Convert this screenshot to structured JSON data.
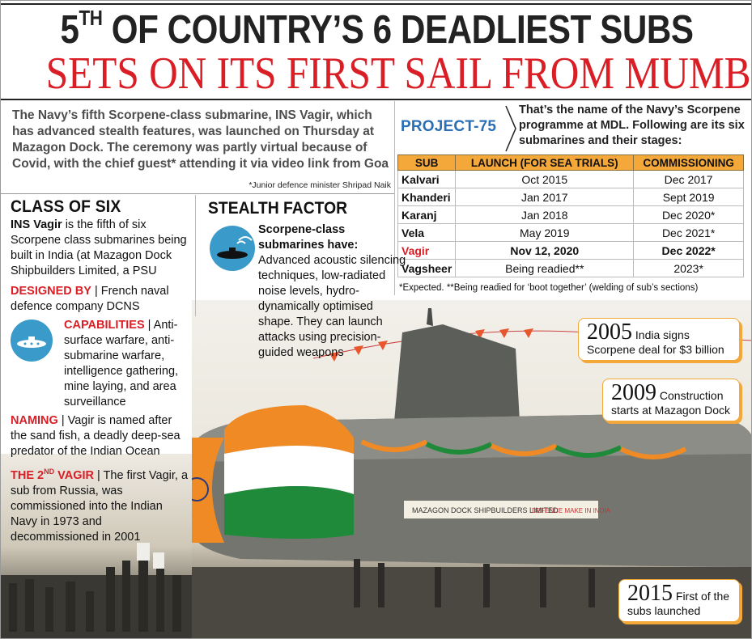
{
  "headline": {
    "line1_pre": "5",
    "line1_sup": "TH",
    "line1_post": " OF COUNTRY’S 6 DEADLIEST SUBS",
    "line2": "SETS ON ITS FIRST SAIL FROM MUMBAI"
  },
  "intro": {
    "text": "The Navy’s fifth Scorpene-class submarine, INS Vagir, which has advanced stealth features, was launched on Thursday at Mazagon Dock. The ceremony was partly virtual because of Covid, with the chief guest* attending it via video link from Goa",
    "note": "*Junior defence minister Shripad Naik"
  },
  "project75": {
    "label": "PROJECT-75",
    "description": "That’s the name of the Navy’s Scorpene programme at MDL. Following are its six submarines and their stages:",
    "headers": [
      "SUB",
      "LAUNCH (FOR SEA TRIALS)",
      "COMMISSIONING"
    ],
    "rows": [
      [
        "Kalvari",
        "Oct 2015",
        "Dec 2017"
      ],
      [
        "Khanderi",
        "Jan 2017",
        "Sept 2019"
      ],
      [
        "Karanj",
        "Jan 2018",
        "Dec 2020*"
      ],
      [
        "Vela",
        "May 2019",
        "Dec 2021*"
      ],
      [
        "Vagir",
        "Nov 12, 2020",
        "Dec 2022*"
      ],
      [
        "Vagsheer",
        "Being readied**",
        "2023*"
      ]
    ],
    "highlight_row": 4,
    "footnote": "*Expected. **Being readied for ‘boot together’ (welding of sub’s sections)"
  },
  "class_of_six": {
    "title": "CLASS OF SIX",
    "intro_bold": "INS Vagir",
    "intro_rest": " is the fifth of six Scorpene class submarines being built in India (at Mazagon Dock Shipbuilders Limited, a PSU",
    "designed_label": "DESIGNED BY",
    "designed_text": "French naval defence company DCNS",
    "capabilities_label": "CAPABILITIES",
    "capabilities_text": "Anti-surface warfare, anti-submarine warfare, intelligence gathering, mine laying, and area surveillance",
    "naming_label": "NAMING",
    "naming_text": "Vagir is named after the sand fish, a deadly deep-sea predator of the Indian Ocean",
    "second_label_pre": "THE 2",
    "second_label_sup": "ND",
    "second_label_post": " VAGIR",
    "second_text": "The first Vagir, a sub from Russia, was commissioned into the Indian Navy in 1973 and decommissioned in 2001"
  },
  "stealth": {
    "title": "STEALTH FACTOR",
    "lead": "Scorpene-class submarines have:",
    "text": "Advanced acoustic silencing techniques, low-radiated noise levels, hydro-dynamically optimised shape. They can launch attacks using precision-guided weapons"
  },
  "timeline": [
    {
      "year": "2005",
      "text": "India signs Scorpene deal for $3 billion"
    },
    {
      "year": "2009",
      "text": "Construction starts at Mazagon Dock"
    },
    {
      "year": "2015",
      "text": "First of the subs launched"
    }
  ],
  "hull_text": {
    "builder": "MAZAGON DOCK SHIPBUILDERS LIMITED",
    "slogan": "DEFENCE MAKE IN INDIA"
  },
  "colors": {
    "headline_red": "#d91e26",
    "project_blue": "#2a6fb6",
    "table_header_orange": "#f4a83a",
    "icon_blue": "#3a9ac9",
    "saffron": "#f08a24",
    "green": "#1f8a3a"
  }
}
